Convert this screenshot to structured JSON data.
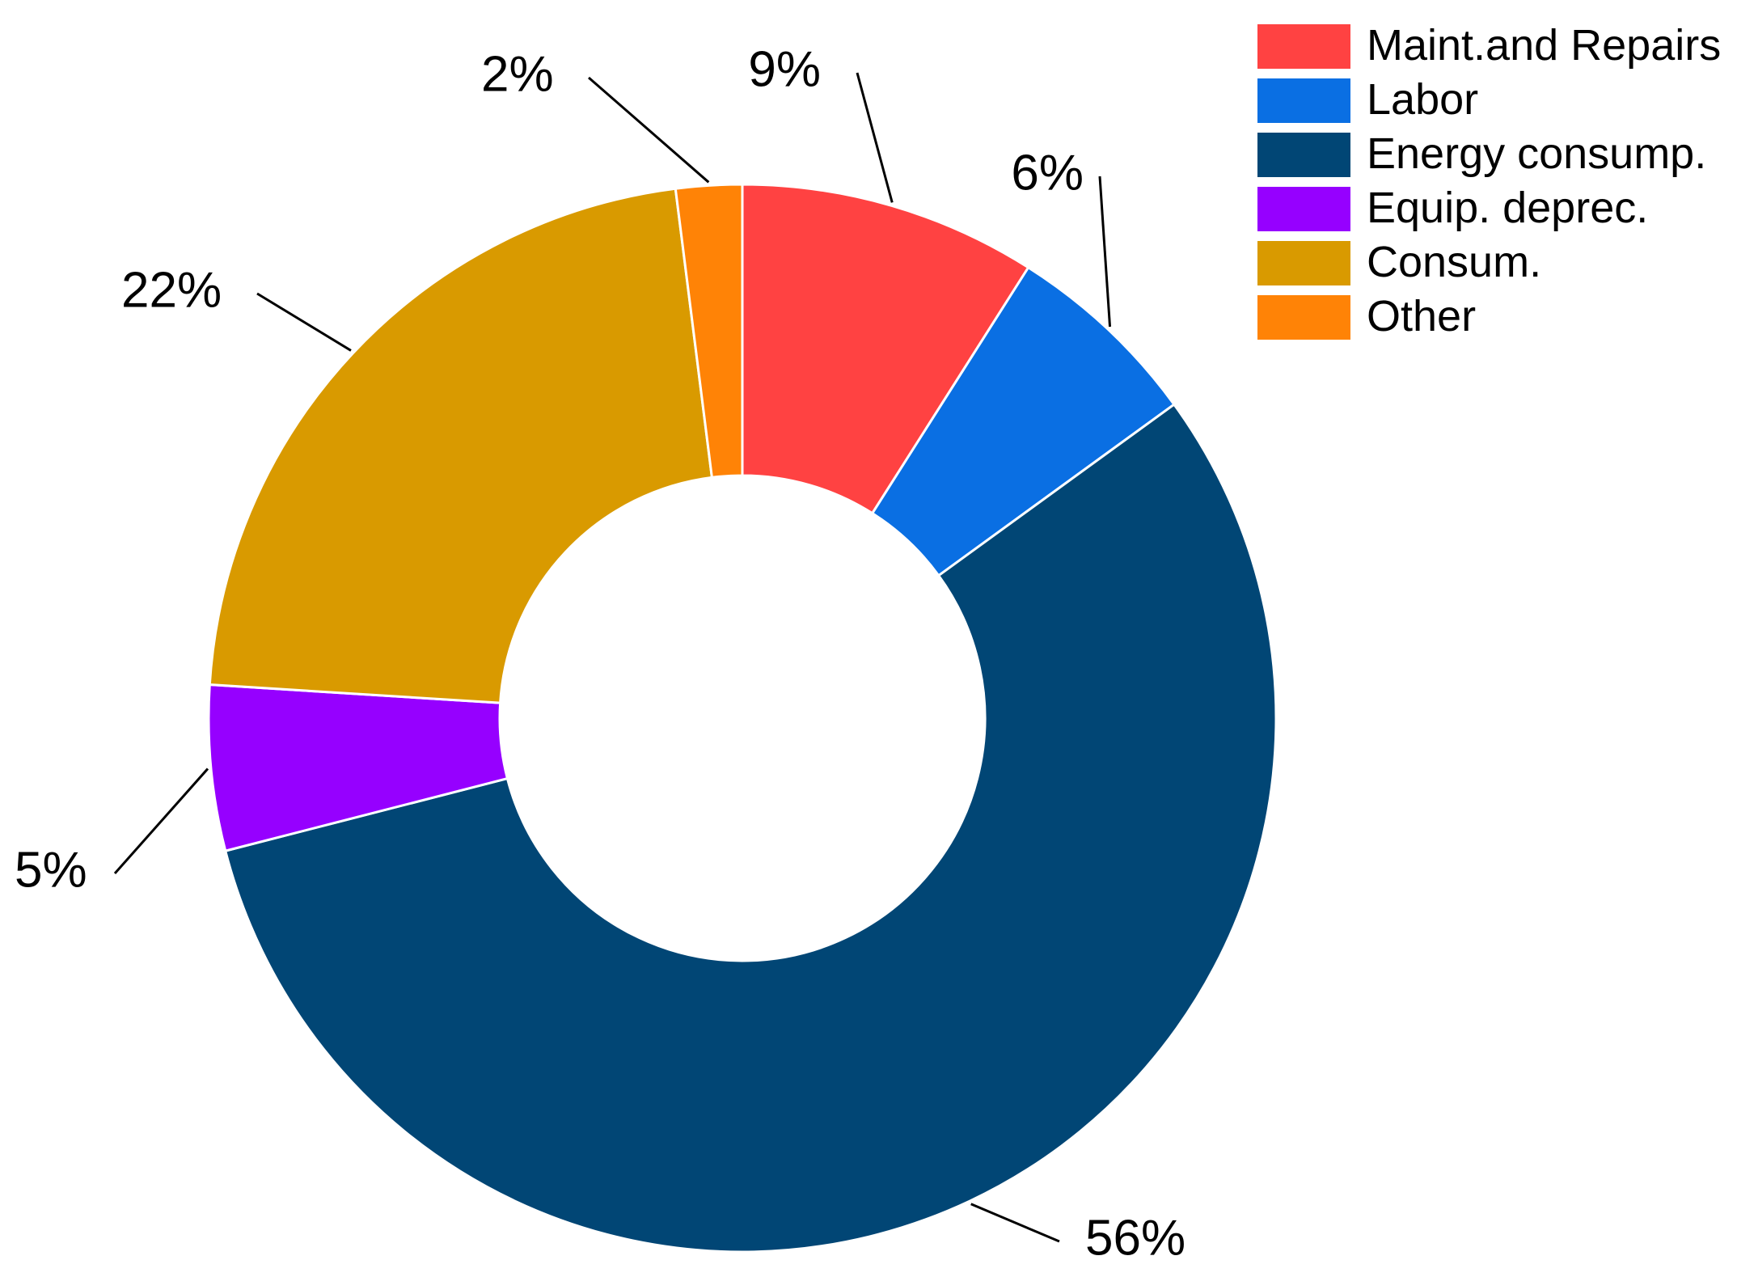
{
  "chart_data": {
    "type": "pie",
    "variant": "donut",
    "categories": [
      "Maint.and Repairs",
      "Labor",
      "Energy consump.",
      "Equip. deprec.",
      "Consum.",
      "Other"
    ],
    "values": [
      9,
      6,
      56,
      5,
      22,
      2
    ],
    "value_labels": [
      "9%",
      "6%",
      "56%",
      "5%",
      "22%",
      "2%"
    ],
    "colors": [
      "#FF4242",
      "#0A6FE3",
      "#014675",
      "#9600FF",
      "#D99A00",
      "#FF8306"
    ],
    "legend_position": "top-right"
  }
}
